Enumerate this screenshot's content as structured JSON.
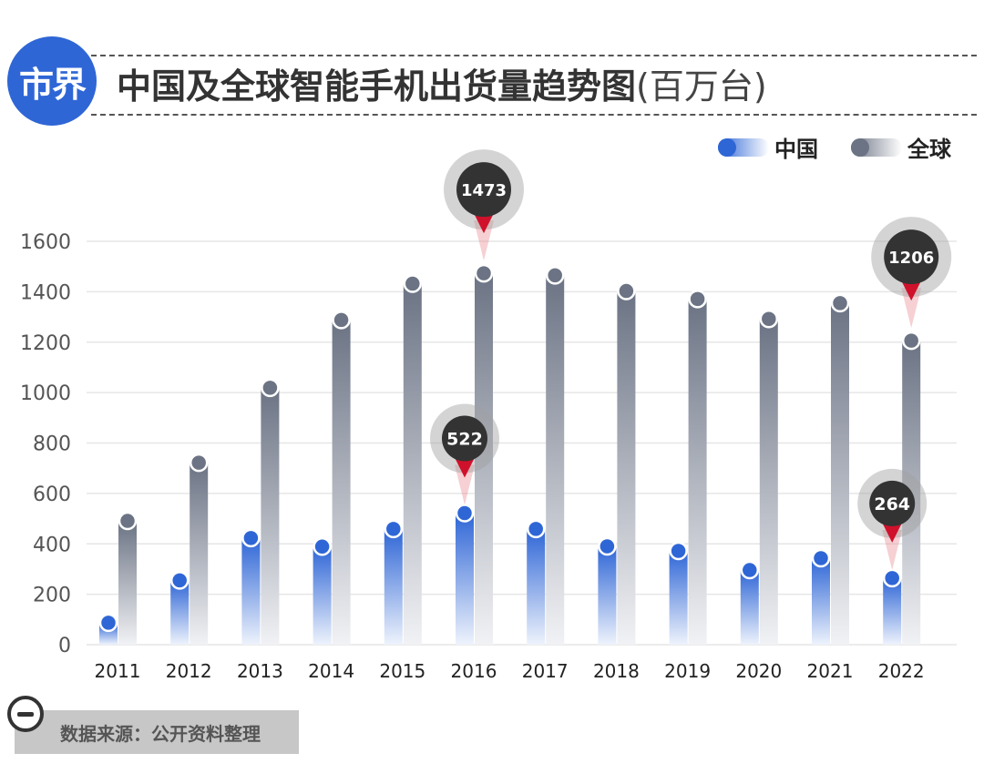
{
  "header": {
    "logo_text": "市界",
    "title": "中国及全球智能手机出货量趋势图",
    "unit": "(百万台)"
  },
  "legend": {
    "china_label": "中国",
    "global_label": "全球"
  },
  "colors": {
    "china": "#2f66d6",
    "global": "#6b7384",
    "callout": "#333333",
    "marker": "#d0112b"
  },
  "source": {
    "text": "数据来源：公开资料整理"
  },
  "chart_data": {
    "type": "bar",
    "categories": [
      "2011",
      "2012",
      "2013",
      "2014",
      "2015",
      "2016",
      "2017",
      "2018",
      "2019",
      "2020",
      "2021",
      "2022"
    ],
    "series": [
      {
        "name": "中国",
        "values": [
          87,
          255,
          423,
          389,
          459,
          522,
          459,
          390,
          372,
          296,
          343,
          264
        ]
      },
      {
        "name": "全球",
        "values": [
          491,
          722,
          1019,
          1288,
          1432,
          1473,
          1465,
          1403,
          1371,
          1292,
          1355,
          1206
        ]
      }
    ],
    "ylim": [
      0,
      1600
    ],
    "yticks": [
      0,
      200,
      400,
      600,
      800,
      1000,
      1200,
      1400,
      1600
    ],
    "grid": true,
    "legend_position": "top-right",
    "callouts": [
      {
        "series": 1,
        "index": 5,
        "label": "1473"
      },
      {
        "series": 0,
        "index": 5,
        "label": "522"
      },
      {
        "series": 1,
        "index": 11,
        "label": "1206"
      },
      {
        "series": 0,
        "index": 11,
        "label": "264"
      }
    ]
  }
}
